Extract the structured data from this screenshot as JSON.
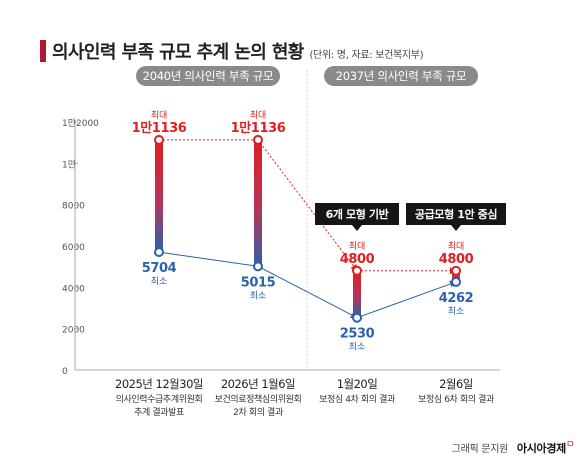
{
  "header": {
    "title": "의사인력 부족 규모 추계 논의 현황",
    "subtitle": "(단위: 명, 자료: 보건복지부)",
    "accent_color": "#b0182d"
  },
  "periods": [
    {
      "label": "2040년 의사인력 부족 규모"
    },
    {
      "label": "2037년 의사인력 부족 규모"
    }
  ],
  "chart_data": {
    "type": "range",
    "y_tick_labels": [
      "0",
      "2000",
      "4000",
      "6000",
      "8000",
      "1만",
      "1만2000"
    ],
    "ylim": [
      0,
      12000
    ],
    "grid": false,
    "categories": [
      {
        "date": "2025년 12월30일",
        "desc": [
          "의사인력수급추계위원회",
          "추계 결과발표"
        ]
      },
      {
        "date": "2026년 1월6일",
        "desc": [
          "보건의료정책심의위원회",
          "2차 회의 결과"
        ]
      },
      {
        "date": "1월20일",
        "desc": [
          "보정심 4차 회의 결과"
        ]
      },
      {
        "date": "2월6일",
        "desc": [
          "보정심 6차 회의 결과"
        ]
      }
    ],
    "series": [
      {
        "name": "최대",
        "values": [
          11136,
          11136,
          4800,
          4800
        ],
        "value_labels": [
          "1만1136",
          "1만1136",
          "4800",
          "4800"
        ],
        "color": "#e02020"
      },
      {
        "name": "최소",
        "values": [
          5704,
          5015,
          2530,
          4262
        ],
        "value_labels": [
          "5704",
          "5015",
          "2530",
          "4262"
        ],
        "color": "#2c62ad"
      }
    ],
    "annotations": [
      {
        "text": "6개 모형 기반",
        "category": 2
      },
      {
        "text": "공급모형 1안 중심",
        "category": 3
      }
    ]
  },
  "credit": {
    "author": "그래픽 문지원",
    "brand": "아시아경제",
    "mark": "ㅁ"
  }
}
